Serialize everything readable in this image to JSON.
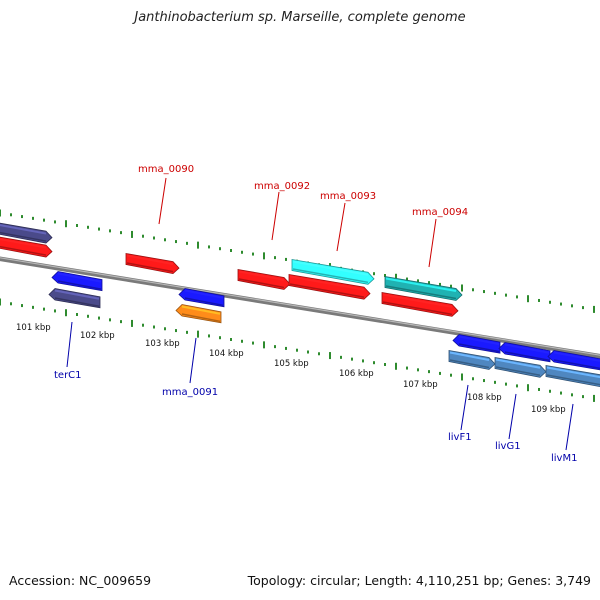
{
  "title": "Janthinobacterium sp. Marseille, complete genome",
  "footer": {
    "accession": "Accession: NC_009659",
    "summary": "Topology: circular; Length: 4,110,251 bp; Genes: 3,749"
  },
  "colors": {
    "tick": "#2e8b2e",
    "backbone": "#8a8a8a",
    "label_top": "#cc0000",
    "label_bottom": "#0000aa",
    "gene_red": "#ff1a1a",
    "gene_blue": "#1a1aff",
    "gene_purple": "#4a4a8a",
    "gene_orange": "#ff8c1a",
    "gene_cyan": "#33ffff",
    "gene_teal": "#20b2b2",
    "gene_steelblue": "#4f87c0"
  },
  "scale_labels": [
    "101 kbp",
    "102 kbp",
    "103 kbp",
    "104 kbp",
    "105 kbp",
    "106 kbp",
    "107 kbp",
    "108 kbp",
    "109 kbp"
  ],
  "top_gene_labels": [
    "mma_0090",
    "mma_0092",
    "mma_0093",
    "mma_0094"
  ],
  "bottom_gene_labels": [
    "terC1",
    "mma_0091",
    "livF1",
    "livG1",
    "livM1"
  ]
}
